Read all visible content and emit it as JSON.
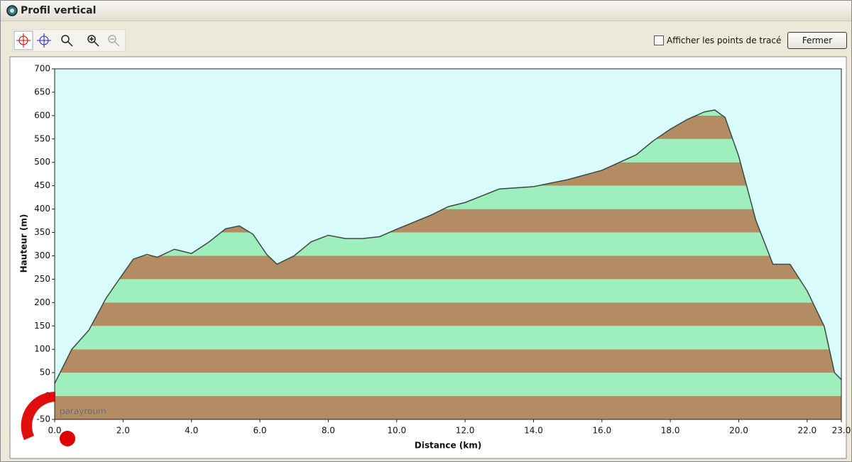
{
  "window": {
    "title": "Profil vertical",
    "checkbox_label": "Afficher les points de tracé",
    "button": "Fermer"
  },
  "watermark": "parayroum",
  "chart_data": {
    "type": "area",
    "x_label": "Distance  (km)",
    "y_label": "Hauteur  (m)",
    "x": [
      0,
      0.5,
      1.0,
      1.5,
      2.0,
      2.3,
      2.7,
      3.0,
      3.5,
      4.0,
      4.5,
      5.0,
      5.4,
      5.8,
      6.2,
      6.5,
      7.0,
      7.5,
      8.0,
      8.5,
      9.0,
      9.5,
      10.0,
      11.0,
      11.5,
      12.0,
      13.0,
      14.0,
      15.0,
      16.0,
      17.0,
      17.5,
      18.0,
      18.5,
      19.0,
      19.3,
      19.6,
      20.0,
      20.5,
      21.0,
      21.5,
      22.0,
      22.5,
      22.8,
      23.0
    ],
    "values": [
      27,
      100,
      141,
      209,
      262,
      293,
      303,
      297,
      314,
      305,
      329,
      358,
      364,
      346,
      303,
      282,
      300,
      330,
      344,
      337,
      337,
      341,
      357,
      387,
      405,
      414,
      443,
      448,
      463,
      483,
      516,
      546,
      571,
      592,
      608,
      612,
      596,
      513,
      376,
      282,
      282,
      225,
      149,
      50,
      35
    ],
    "xlim": [
      0,
      23
    ],
    "ylim": [
      -50,
      700
    ],
    "xticks": [
      {
        "value": 0,
        "label": "0.0"
      },
      {
        "value": 2,
        "label": "2.0"
      },
      {
        "value": 4,
        "label": "4.0"
      },
      {
        "value": 6,
        "label": "6.0"
      },
      {
        "value": 8,
        "label": "8.0"
      },
      {
        "value": 10,
        "label": "10.0"
      },
      {
        "value": 12,
        "label": "12.0"
      },
      {
        "value": 14,
        "label": "14.0"
      },
      {
        "value": 16,
        "label": "16.0"
      },
      {
        "value": 18,
        "label": "18.0"
      },
      {
        "value": 20,
        "label": "20.0"
      },
      {
        "value": 22,
        "label": "22.0"
      },
      {
        "value": 23,
        "label": "23.0"
      }
    ],
    "yticks": [
      -50,
      0,
      50,
      100,
      150,
      200,
      250,
      300,
      350,
      400,
      450,
      500,
      550,
      600,
      650,
      700
    ],
    "colors": {
      "background": "#d9fbfb",
      "bands": [
        "#b48c64",
        "#9eefbd"
      ],
      "line": "#3b4a42"
    }
  }
}
